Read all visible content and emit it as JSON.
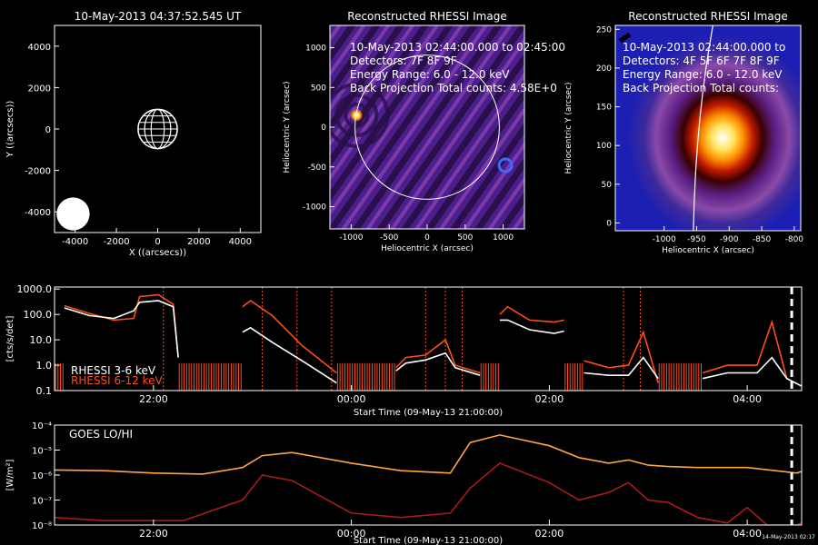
{
  "chart_data": [
    {
      "type": "scatter",
      "title": "10-May-2013 04:37:52.545 UT",
      "xlabel": "X ((arcsecs))",
      "ylabel": "Y ((arcsecs))",
      "xlim": [
        -5000,
        5000
      ],
      "ylim": [
        -5000,
        5000
      ],
      "xticks": [
        "-4000",
        "-2000",
        "0",
        "2000",
        "4000"
      ],
      "yticks": [
        "-4000",
        "-2000",
        "0",
        "2000",
        "4000"
      ],
      "sun": {
        "x": 0,
        "y": 0,
        "radius": 950
      },
      "disk": {
        "x": -4100,
        "y": -4100,
        "radius": 800
      },
      "colors": {
        "sun": "#ffffff",
        "disk": "#ffffff"
      }
    },
    {
      "type": "heatmap",
      "title": "Reconstructed RHESSI Image",
      "xlabel": "Heliocentric X (arcsec)",
      "ylabel": "Heliocentric Y (arcsec)",
      "xlim": [
        -1280,
        1280
      ],
      "ylim": [
        -1280,
        1280
      ],
      "xticks": [
        "-1000",
        "-500",
        "0",
        "500",
        "1000"
      ],
      "yticks": [
        "-1000",
        "-500",
        "0",
        "500",
        "1000"
      ],
      "annotation": [
        "10-May-2013 02:44:00.000 to 02:45:00",
        "Detectors: 7F 8F 9F",
        "Energy Range: 6.0 - 12.0 keV",
        "Back Projection     Total counts: 4.58E+0"
      ],
      "source": {
        "x": -930,
        "y": 150
      },
      "limb_radius": 950,
      "colors": {
        "background": "#4a1f8c",
        "source": "#fff27a",
        "limb": "#ffffff"
      }
    },
    {
      "type": "heatmap",
      "title": "Reconstructed RHESSI Image",
      "xlabel": "Heliocentric X (arcsec)",
      "ylabel": "Heliocentric Y (arcsec)",
      "xlim": [
        -1075,
        -790
      ],
      "ylim": [
        -10,
        255
      ],
      "xticks": [
        "-1000",
        "-950",
        "-900",
        "-850",
        "-800"
      ],
      "yticks": [
        "0",
        "50",
        "100",
        "150",
        "200",
        "250"
      ],
      "annotation": [
        "10-May-2013 02:44:00.000 to",
        "Detectors: 4F 5F 6F 7F 8F 9F",
        "Energy Range: 6.0 - 12.0 keV",
        "Back Projection     Total counts:"
      ],
      "source": {
        "x": -910,
        "y": 110
      },
      "colors": {
        "background": "#1b1fb4",
        "source": "#ffffff",
        "limb": "#ffffff"
      }
    },
    {
      "type": "line",
      "ylabel": "[cts/s/det]",
      "xlabel": "Start Time (09-May-13 21:00:00)",
      "yscale": "log",
      "ylim": [
        0.1,
        1200
      ],
      "xlim": [
        21.0,
        28.55
      ],
      "xticks": [
        {
          "x": 22.0,
          "label": "22:00"
        },
        {
          "x": 24.0,
          "label": "00:00"
        },
        {
          "x": 26.0,
          "label": "02:00"
        },
        {
          "x": 28.0,
          "label": "04:00"
        }
      ],
      "yticks": [
        "0.1",
        "1.0",
        "10.0",
        "100.0",
        "1000.0"
      ],
      "legend_position": "bottom-left",
      "series": [
        {
          "name": "RHESSI  3-6 keV",
          "color": "#ffffff"
        },
        {
          "name": "RHESSI 6-12 keV",
          "color": "#ff4d1a"
        }
      ],
      "gaps": [
        [
          21.0,
          21.1
        ],
        [
          22.25,
          22.9
        ],
        [
          23.85,
          24.45
        ],
        [
          25.3,
          25.5
        ],
        [
          26.15,
          26.35
        ],
        [
          27.1,
          27.55
        ]
      ],
      "segments": [
        {
          "x": [
            21.1,
            21.35,
            21.6,
            21.8,
            21.86,
            22.05,
            22.2,
            22.25
          ],
          "white": [
            180,
            90,
            70,
            140,
            300,
            350,
            200,
            2
          ],
          "red": [
            220,
            110,
            60,
            70,
            500,
            600,
            250,
            2
          ]
        },
        {
          "x": [
            22.9,
            22.98,
            23.2,
            23.5,
            23.85
          ],
          "white": [
            20,
            30,
            8,
            1.5,
            0.2
          ],
          "red": [
            200,
            350,
            90,
            6,
            0.5
          ]
        },
        {
          "x": [
            24.45,
            24.55,
            24.75,
            24.95,
            25.05,
            25.3
          ],
          "white": [
            0.6,
            1.2,
            1.6,
            3,
            0.8,
            0.4
          ],
          "red": [
            0.8,
            2,
            2.5,
            10,
            1,
            0.5
          ]
        },
        {
          "x": [
            25.5,
            25.58,
            25.8,
            26.05,
            26.15
          ],
          "white": [
            60,
            60,
            25,
            18,
            22
          ],
          "red": [
            100,
            200,
            60,
            50,
            60
          ]
        },
        {
          "x": [
            26.35,
            26.6,
            26.8,
            26.95,
            27.1
          ],
          "white": [
            0.5,
            0.4,
            0.4,
            2,
            0.3
          ],
          "red": [
            1.5,
            0.8,
            1,
            20,
            0.2
          ]
        },
        {
          "x": [
            27.55,
            27.8,
            28.1,
            28.25,
            28.4,
            28.55
          ],
          "white": [
            0.3,
            0.5,
            0.5,
            2,
            0.3,
            0.15
          ],
          "red": [
            0.5,
            1,
            1,
            50,
            0.3,
            0.15
          ]
        }
      ],
      "flare_markers": [
        22.1,
        23.1,
        23.45,
        23.8,
        24.75,
        24.95,
        25.12,
        26.75,
        26.92
      ],
      "current_time": 28.45,
      "colors": {
        "markers": "#ff4d1a",
        "current_time": "#ffffff"
      }
    },
    {
      "type": "line",
      "ylabel": "[W/m²]",
      "xlabel": "Start Time (09-May-13 21:00:00)",
      "yscale": "log",
      "legend": "GOES LO/HI",
      "legend_position": "top-left",
      "ylim": [
        1e-08,
        0.0001
      ],
      "xlim": [
        21.0,
        28.55
      ],
      "xticks": [
        {
          "x": 22.0,
          "label": "22:00"
        },
        {
          "x": 24.0,
          "label": "00:00"
        },
        {
          "x": 26.0,
          "label": "02:00"
        },
        {
          "x": 28.0,
          "label": "04:00"
        }
      ],
      "yticks": [
        "10⁻⁸",
        "10⁻⁷",
        "10⁻⁶",
        "10⁻⁵",
        "10⁻⁴"
      ],
      "date_stamp": "14-May-2013 02:17",
      "series": [
        {
          "name": "LO",
          "color": "#ffa640",
          "x": [
            21.0,
            21.5,
            22.0,
            22.5,
            22.9,
            23.1,
            23.4,
            24.0,
            24.5,
            25.0,
            25.2,
            25.5,
            26.0,
            26.3,
            26.6,
            26.8,
            27.0,
            27.2,
            27.5,
            28.0,
            28.5,
            28.55
          ],
          "y": [
            1.6e-06,
            1.5e-06,
            1.2e-06,
            1.1e-06,
            2e-06,
            6e-06,
            8e-06,
            3e-06,
            1.5e-06,
            1.2e-06,
            2e-05,
            4e-05,
            1.5e-05,
            5e-06,
            3e-06,
            4e-06,
            2.5e-06,
            2.2e-06,
            2e-06,
            2e-06,
            1.2e-06,
            1.4e-06
          ]
        },
        {
          "name": "HI",
          "color": "#a81c1c",
          "x": [
            21.0,
            21.5,
            22.0,
            22.3,
            22.9,
            23.1,
            23.4,
            24.0,
            24.5,
            25.0,
            25.2,
            25.5,
            26.0,
            26.3,
            26.6,
            26.8,
            27.0,
            27.2,
            27.5,
            27.8,
            28.0,
            28.2,
            28.5,
            28.55
          ],
          "y": [
            2e-08,
            1.5e-08,
            1.5e-08,
            1.5e-08,
            1e-07,
            1e-06,
            6e-07,
            3e-08,
            2e-08,
            3e-08,
            3e-07,
            3e-06,
            5e-07,
            1e-07,
            2e-07,
            5e-07,
            1e-07,
            8e-08,
            2e-08,
            1.2e-08,
            5e-08,
            1e-08,
            1e-08,
            1.2e-08
          ]
        }
      ],
      "current_time": 28.45
    }
  ]
}
